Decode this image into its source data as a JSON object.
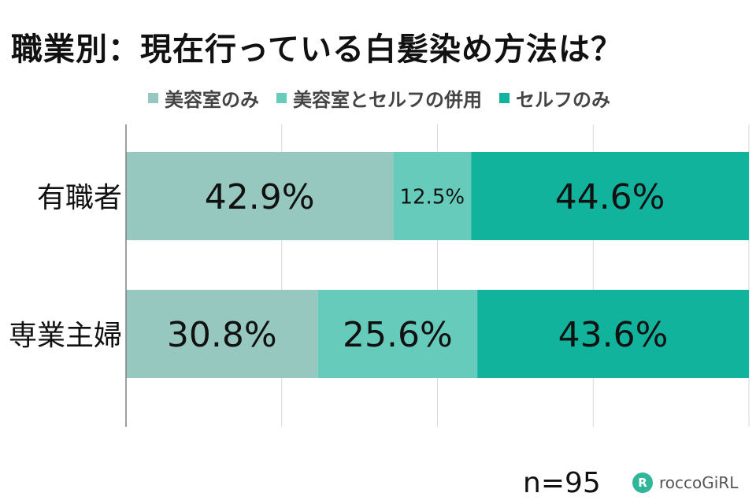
{
  "chart_data": {
    "type": "bar",
    "orientation": "horizontal",
    "stacked": "100%",
    "title": "職業別：現在行っている白髪染め方法は？",
    "categories": [
      "有職者",
      "専業主婦"
    ],
    "series": [
      {
        "name": "美容室のみ",
        "values": [
          42.9,
          30.8
        ],
        "labels": [
          "42.9%",
          "30.8%"
        ],
        "color": "#97c8c0"
      },
      {
        "name": "美容室とセルフの併用",
        "values": [
          12.5,
          25.6
        ],
        "labels": [
          "12.5%",
          "25.6%"
        ],
        "color": "#66cbbb"
      },
      {
        "name": "セルフのみ",
        "values": [
          44.6,
          43.6
        ],
        "labels": [
          "44.6%",
          "43.6%"
        ],
        "color": "#12b39c"
      }
    ],
    "xlim": [
      0,
      100
    ],
    "grid": true,
    "legend_position": "top"
  },
  "footer": {
    "n_label": "n=95",
    "brand": "roccoGiRL",
    "brand_mark": "R"
  }
}
